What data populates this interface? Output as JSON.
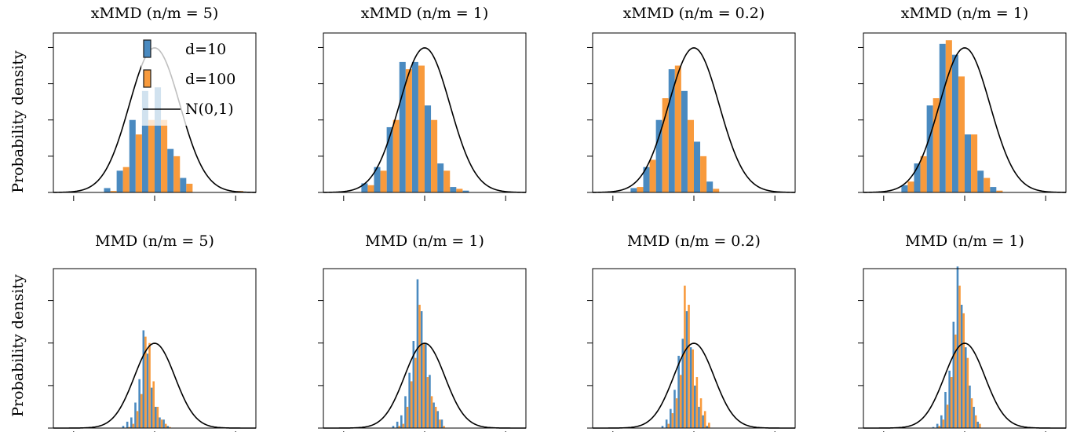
{
  "figure": {
    "ylabel": "Probability density",
    "colors": {
      "d10": "#4a8ac0",
      "d100": "#f89a3c",
      "normal": "#000000",
      "bar_edge": "#1a1a1a"
    }
  },
  "legend": [
    {
      "label": "d=10",
      "kind": "bar",
      "color": "#4a8ac0"
    },
    {
      "label": "d=100",
      "kind": "bar",
      "color": "#f89a3c"
    },
    {
      "label": "N(0,1)",
      "kind": "line",
      "color": "#000000"
    }
  ],
  "chart_data": [
    {
      "type": "bar",
      "row": 0,
      "col": 0,
      "legend_placement": "top-right",
      "legend_shown": true,
      "title": "xMMD (n/m = 5)",
      "ylabel": "Probability density",
      "xlim": [
        -4,
        4
      ],
      "ylim": [
        0,
        0.44
      ],
      "bin_centers": [
        -2.25,
        -1.75,
        -1.25,
        -0.75,
        -0.25,
        0.25,
        0.75,
        1.25,
        1.75,
        2.25,
        2.75,
        3.25
      ],
      "series": [
        {
          "name": "d=10",
          "values": [
            0.0,
            0.012,
            0.06,
            0.2,
            0.28,
            0.29,
            0.12,
            0.04,
            0.0,
            0.0,
            0.0,
            0.0
          ]
        },
        {
          "name": "d=100",
          "values": [
            0.0,
            0.004,
            0.07,
            0.16,
            0.2,
            0.2,
            0.1,
            0.024,
            0.0,
            0.0,
            0.0,
            0.004
          ]
        }
      ],
      "normal_curve": {
        "name": "N(0,1)",
        "mean": 0,
        "sd": 1
      }
    },
    {
      "type": "bar",
      "row": 0,
      "col": 1,
      "legend_shown": false,
      "title": "xMMD (n/m = 1)",
      "xlim": [
        -4,
        4
      ],
      "ylim": [
        0,
        0.44
      ],
      "bin_centers": [
        -2.25,
        -1.75,
        -1.25,
        -0.75,
        -0.25,
        0.25,
        0.75,
        1.25,
        1.75,
        2.25,
        2.75,
        3.25
      ],
      "series": [
        {
          "name": "d=10",
          "values": [
            0.025,
            0.07,
            0.18,
            0.36,
            0.36,
            0.24,
            0.08,
            0.015,
            0.005,
            0.0,
            0.0,
            0.0
          ]
        },
        {
          "name": "d=100",
          "values": [
            0.02,
            0.06,
            0.2,
            0.34,
            0.35,
            0.2,
            0.06,
            0.01,
            0.0,
            0.0,
            0.0,
            0.0
          ]
        }
      ],
      "normal_curve": {
        "name": "N(0,1)",
        "mean": 0,
        "sd": 1
      }
    },
    {
      "type": "bar",
      "row": 0,
      "col": 2,
      "legend_shown": false,
      "title": "xMMD (n/m = 0.2)",
      "xlim": [
        -4,
        4
      ],
      "ylim": [
        0,
        0.44
      ],
      "bin_centers": [
        -2.25,
        -1.75,
        -1.25,
        -0.75,
        -0.25,
        0.25,
        0.75,
        1.25,
        1.75,
        2.25,
        2.75,
        3.25
      ],
      "series": [
        {
          "name": "d=10",
          "values": [
            0.012,
            0.07,
            0.2,
            0.34,
            0.28,
            0.14,
            0.03,
            0.0,
            0.0,
            0.0,
            0.0,
            0.0
          ]
        },
        {
          "name": "d=100",
          "values": [
            0.015,
            0.09,
            0.26,
            0.35,
            0.2,
            0.1,
            0.01,
            0.0,
            0.0,
            0.0,
            0.0,
            0.0
          ]
        }
      ],
      "normal_curve": {
        "name": "N(0,1)",
        "mean": 0,
        "sd": 1
      }
    },
    {
      "type": "bar",
      "row": 0,
      "col": 3,
      "legend_shown": false,
      "title": "xMMD (n/m = 1)",
      "xlim": [
        -4,
        4
      ],
      "ylim": [
        0,
        0.44
      ],
      "bin_centers": [
        -2.25,
        -1.75,
        -1.25,
        -0.75,
        -0.25,
        0.25,
        0.75,
        1.25,
        1.75,
        2.25,
        2.75,
        3.25
      ],
      "series": [
        {
          "name": "d=10",
          "values": [
            0.02,
            0.08,
            0.24,
            0.41,
            0.38,
            0.16,
            0.06,
            0.015,
            0.0,
            0.0,
            0.0,
            0.0
          ]
        },
        {
          "name": "d=100",
          "values": [
            0.03,
            0.1,
            0.26,
            0.42,
            0.32,
            0.16,
            0.04,
            0.005,
            0.0,
            0.0,
            0.0,
            0.0
          ]
        }
      ],
      "normal_curve": {
        "name": "N(0,1)",
        "mean": 0,
        "sd": 1
      }
    },
    {
      "type": "bar",
      "row": 1,
      "col": 0,
      "legend_shown": false,
      "title": "MMD (n/m = 5)",
      "ylabel": "Probability density",
      "xlim": [
        -5,
        5
      ],
      "ylim": [
        0,
        0.75
      ],
      "bin_centers": [
        -1.9,
        -1.7,
        -1.5,
        -1.3,
        -1.1,
        -0.9,
        -0.7,
        -0.5,
        -0.3,
        -0.1,
        0.1,
        0.3,
        0.5,
        0.7,
        0.9,
        1.1,
        1.3,
        1.5,
        1.7
      ],
      "series": [
        {
          "name": "d=10",
          "values": [
            0.0,
            0.0,
            0.01,
            0.03,
            0.05,
            0.12,
            0.23,
            0.46,
            0.35,
            0.19,
            0.1,
            0.05,
            0.04,
            0.01,
            0.0,
            0.0,
            0.0,
            0.0,
            0.0
          ]
        },
        {
          "name": "d=100",
          "values": [
            0.0,
            0.0,
            0.0,
            0.005,
            0.02,
            0.08,
            0.16,
            0.43,
            0.4,
            0.22,
            0.1,
            0.04,
            0.02,
            0.005,
            0.0,
            0.0,
            0.0,
            0.0,
            0.0
          ]
        }
      ],
      "normal_curve": {
        "name": "N(0,1)",
        "mean": 0,
        "sd": 1
      }
    },
    {
      "type": "bar",
      "row": 1,
      "col": 1,
      "legend_shown": false,
      "title": "MMD (n/m = 1)",
      "xlim": [
        -5,
        5
      ],
      "ylim": [
        0,
        0.75
      ],
      "bin_centers": [
        -1.9,
        -1.7,
        -1.5,
        -1.3,
        -1.1,
        -0.9,
        -0.7,
        -0.5,
        -0.3,
        -0.1,
        0.1,
        0.3,
        0.5,
        0.7,
        0.9,
        1.1,
        1.3,
        1.5,
        1.7
      ],
      "series": [
        {
          "name": "d=10",
          "values": [
            0.0,
            0.0,
            0.01,
            0.03,
            0.06,
            0.15,
            0.26,
            0.41,
            0.7,
            0.55,
            0.4,
            0.25,
            0.12,
            0.08,
            0.04,
            0.0,
            0.0,
            0.0,
            0.0
          ]
        },
        {
          "name": "d=100",
          "values": [
            0.0,
            0.0,
            0.0,
            0.01,
            0.02,
            0.1,
            0.22,
            0.33,
            0.58,
            0.4,
            0.24,
            0.15,
            0.1,
            0.04,
            0.01,
            0.0,
            0.0,
            0.0,
            0.0
          ]
        }
      ],
      "normal_curve": {
        "name": "N(0,1)",
        "mean": 0,
        "sd": 1
      }
    },
    {
      "type": "bar",
      "row": 1,
      "col": 2,
      "legend_shown": false,
      "title": "MMD (n/m = 0.2)",
      "xlim": [
        -5,
        5
      ],
      "ylim": [
        0,
        0.75
      ],
      "bin_centers": [
        -1.9,
        -1.7,
        -1.5,
        -1.3,
        -1.1,
        -0.9,
        -0.7,
        -0.5,
        -0.3,
        -0.1,
        0.1,
        0.3,
        0.5,
        0.7,
        0.9,
        1.1,
        1.3,
        1.5,
        1.7
      ],
      "series": [
        {
          "name": "d=10",
          "values": [
            0.0,
            0.0,
            0.01,
            0.04,
            0.09,
            0.18,
            0.34,
            0.42,
            0.55,
            0.38,
            0.2,
            0.1,
            0.06,
            0.01,
            0.0,
            0.0,
            0.0,
            0.0,
            0.0
          ]
        },
        {
          "name": "d=100",
          "values": [
            0.0,
            0.0,
            0.0,
            0.02,
            0.07,
            0.14,
            0.25,
            0.67,
            0.58,
            0.37,
            0.24,
            0.14,
            0.08,
            0.025,
            0.0,
            0.0,
            0.0,
            0.0,
            0.0
          ]
        }
      ],
      "normal_curve": {
        "name": "N(0,1)",
        "mean": 0,
        "sd": 1
      }
    },
    {
      "type": "bar",
      "row": 1,
      "col": 3,
      "legend_shown": false,
      "title": "MMD (n/m = 1)",
      "xlim": [
        -5,
        5
      ],
      "ylim": [
        0,
        0.75
      ],
      "bin_centers": [
        -1.9,
        -1.7,
        -1.5,
        -1.3,
        -1.1,
        -0.9,
        -0.7,
        -0.5,
        -0.3,
        -0.1,
        0.1,
        0.3,
        0.5,
        0.7,
        0.9,
        1.1,
        1.3,
        1.5,
        1.7
      ],
      "series": [
        {
          "name": "d=10",
          "values": [
            0.0,
            0.0,
            0.005,
            0.02,
            0.06,
            0.17,
            0.27,
            0.5,
            0.76,
            0.58,
            0.38,
            0.2,
            0.1,
            0.03,
            0.0,
            0.0,
            0.0,
            0.0,
            0.0
          ]
        },
        {
          "name": "d=100",
          "values": [
            0.0,
            0.0,
            0.0,
            0.01,
            0.04,
            0.11,
            0.24,
            0.44,
            0.67,
            0.54,
            0.33,
            0.14,
            0.06,
            0.02,
            0.0,
            0.0,
            0.0,
            0.0,
            0.0
          ]
        }
      ],
      "normal_curve": {
        "name": "N(0,1)",
        "mean": 0,
        "sd": 1
      }
    }
  ]
}
